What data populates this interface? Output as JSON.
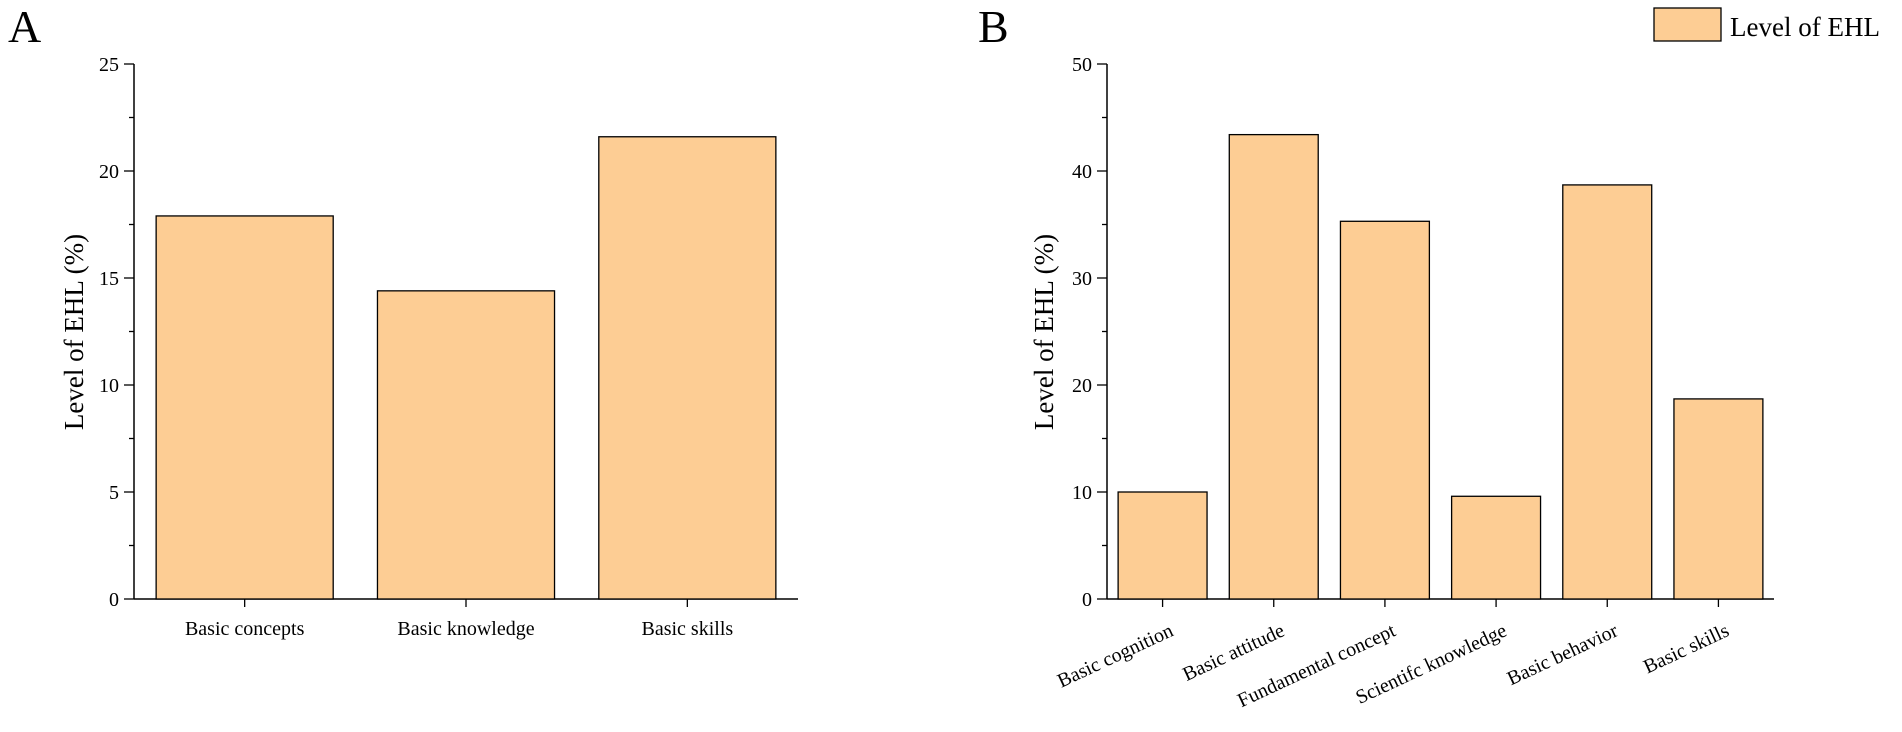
{
  "colors": {
    "bar_fill": "#fdcd94",
    "bar_stroke": "#000000",
    "axis": "#000000"
  },
  "legend": {
    "label": "Level of EHL",
    "placement": "top-right"
  },
  "chart_data": [
    {
      "panel": "A",
      "type": "bar",
      "ylabel": "Level of EHL (%)",
      "ylim": [
        0,
        25
      ],
      "yticks": [
        0,
        5,
        10,
        15,
        20,
        25
      ],
      "categories": [
        "Basic concepts",
        "Basic knowledge",
        "Basic skills"
      ],
      "values": [
        17.9,
        14.4,
        21.6
      ],
      "grid": false
    },
    {
      "panel": "B",
      "type": "bar",
      "ylabel": "Level of EHL (%)",
      "ylim": [
        0,
        50
      ],
      "yticks": [
        0,
        10,
        20,
        30,
        40,
        50
      ],
      "categories": [
        "Basic cognition",
        "Basic attitude",
        "Fundamental concept",
        "Scientifc knowledge",
        "Basic behavior",
        "Basic skills"
      ],
      "values": [
        10.0,
        43.4,
        35.3,
        9.6,
        38.7,
        18.7
      ],
      "grid": false
    }
  ]
}
